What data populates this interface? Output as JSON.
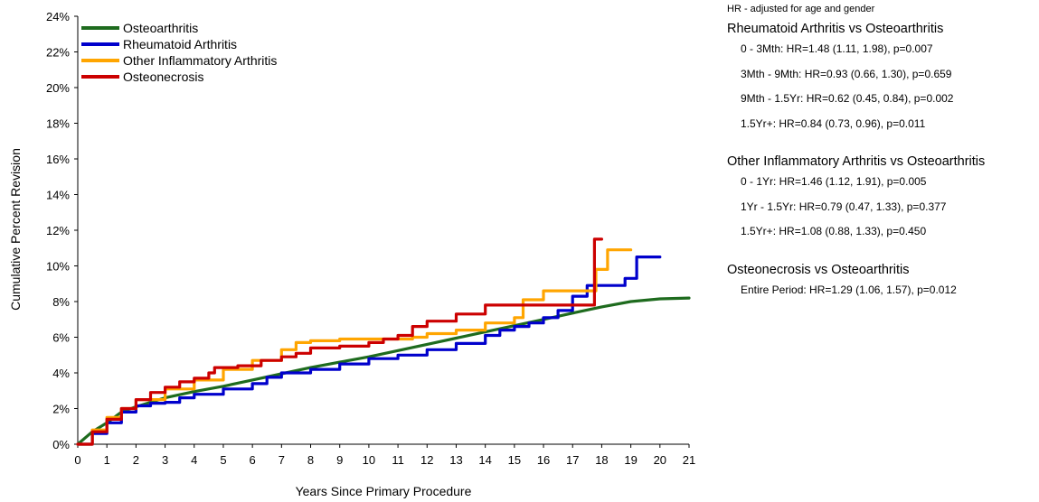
{
  "chart_data": {
    "type": "line",
    "title": "",
    "xlabel": "Years Since Primary Procedure",
    "ylabel": "Cumulative Percent Revision",
    "xlim": [
      0,
      21
    ],
    "ylim": [
      0,
      24
    ],
    "x_ticks": [
      "0",
      "1",
      "2",
      "3",
      "4",
      "5",
      "6",
      "7",
      "8",
      "9",
      "10",
      "11",
      "12",
      "13",
      "14",
      "15",
      "16",
      "17",
      "18",
      "19",
      "20",
      "21"
    ],
    "y_ticks": [
      "0%",
      "2%",
      "4%",
      "6%",
      "8%",
      "10%",
      "12%",
      "14%",
      "16%",
      "18%",
      "20%",
      "22%",
      "24%"
    ],
    "grid": false,
    "legend_position": "top-left",
    "series": [
      {
        "name": "Osteoarthritis",
        "color": "#1E6B1E",
        "step": false,
        "points": [
          [
            0,
            0
          ],
          [
            0.5,
            0.7
          ],
          [
            1,
            1.2
          ],
          [
            1.5,
            1.8
          ],
          [
            2,
            2.1
          ],
          [
            3,
            2.6
          ],
          [
            4,
            2.95
          ],
          [
            5,
            3.25
          ],
          [
            6,
            3.6
          ],
          [
            7,
            3.95
          ],
          [
            8,
            4.3
          ],
          [
            9,
            4.6
          ],
          [
            10,
            4.9
          ],
          [
            11,
            5.25
          ],
          [
            12,
            5.6
          ],
          [
            13,
            5.95
          ],
          [
            14,
            6.3
          ],
          [
            15,
            6.65
          ],
          [
            16,
            7.0
          ],
          [
            17,
            7.35
          ],
          [
            18,
            7.7
          ],
          [
            19,
            8.0
          ],
          [
            20,
            8.15
          ],
          [
            21,
            8.2
          ]
        ]
      },
      {
        "name": "Rheumatoid Arthritis",
        "color": "#0000CC",
        "step": true,
        "points": [
          [
            0,
            0
          ],
          [
            0.5,
            0.6
          ],
          [
            1,
            1.2
          ],
          [
            1.5,
            1.8
          ],
          [
            2,
            2.15
          ],
          [
            2.5,
            2.3
          ],
          [
            3,
            2.35
          ],
          [
            3.5,
            2.6
          ],
          [
            4,
            2.8
          ],
          [
            5,
            3.1
          ],
          [
            6,
            3.4
          ],
          [
            6.5,
            3.75
          ],
          [
            7,
            4.0
          ],
          [
            8,
            4.2
          ],
          [
            9,
            4.5
          ],
          [
            10,
            4.8
          ],
          [
            11,
            5.0
          ],
          [
            12,
            5.3
          ],
          [
            13,
            5.65
          ],
          [
            14,
            6.1
          ],
          [
            14.5,
            6.4
          ],
          [
            15,
            6.6
          ],
          [
            15.5,
            6.8
          ],
          [
            16,
            7.1
          ],
          [
            16.5,
            7.5
          ],
          [
            17,
            8.3
          ],
          [
            17.5,
            8.9
          ],
          [
            18,
            8.9
          ],
          [
            18.8,
            9.3
          ],
          [
            19.2,
            10.5
          ],
          [
            20,
            10.5
          ]
        ]
      },
      {
        "name": "Other Inflammatory Arthritis",
        "color": "#FFA500",
        "step": true,
        "points": [
          [
            0,
            0
          ],
          [
            0.5,
            0.8
          ],
          [
            1,
            1.5
          ],
          [
            1.5,
            2.0
          ],
          [
            2,
            2.5
          ],
          [
            3,
            3.1
          ],
          [
            4,
            3.6
          ],
          [
            5,
            4.2
          ],
          [
            6,
            4.7
          ],
          [
            7,
            5.3
          ],
          [
            7.5,
            5.7
          ],
          [
            8,
            5.8
          ],
          [
            9,
            5.9
          ],
          [
            10,
            5.9
          ],
          [
            11,
            5.9
          ],
          [
            11.5,
            6.0
          ],
          [
            12,
            6.2
          ],
          [
            13,
            6.4
          ],
          [
            14,
            6.8
          ],
          [
            15,
            7.1
          ],
          [
            15.3,
            8.1
          ],
          [
            16,
            8.6
          ],
          [
            17,
            8.6
          ],
          [
            17.5,
            8.6
          ],
          [
            17.8,
            9.8
          ],
          [
            18.2,
            10.9
          ],
          [
            19,
            10.9
          ]
        ]
      },
      {
        "name": "Osteonecrosis",
        "color": "#CC0000",
        "step": true,
        "points": [
          [
            0,
            0
          ],
          [
            0.5,
            0.7
          ],
          [
            1,
            1.4
          ],
          [
            1.5,
            2.0
          ],
          [
            2,
            2.5
          ],
          [
            2.5,
            2.9
          ],
          [
            3,
            3.2
          ],
          [
            3.5,
            3.5
          ],
          [
            4,
            3.7
          ],
          [
            4.5,
            4.0
          ],
          [
            4.7,
            4.3
          ],
          [
            5.5,
            4.4
          ],
          [
            6.3,
            4.7
          ],
          [
            7,
            4.9
          ],
          [
            7.5,
            5.1
          ],
          [
            8,
            5.4
          ],
          [
            9,
            5.5
          ],
          [
            10,
            5.7
          ],
          [
            10.5,
            5.9
          ],
          [
            11,
            6.1
          ],
          [
            11.5,
            6.6
          ],
          [
            12,
            6.9
          ],
          [
            13,
            7.3
          ],
          [
            14,
            7.8
          ],
          [
            15,
            7.8
          ],
          [
            16,
            7.8
          ],
          [
            17,
            7.8
          ],
          [
            17.7,
            7.8
          ],
          [
            17.75,
            11.5
          ],
          [
            18,
            11.5
          ]
        ]
      }
    ]
  },
  "hr_panel": {
    "note": "HR - adjusted for age and gender",
    "groups": [
      {
        "heading": "Rheumatoid Arthritis vs Osteoarthritis",
        "rows": [
          "0 - 3Mth: HR=1.48 (1.11, 1.98), p=0.007",
          "3Mth - 9Mth: HR=0.93 (0.66, 1.30), p=0.659",
          "9Mth - 1.5Yr: HR=0.62 (0.45, 0.84), p=0.002",
          "1.5Yr+: HR=0.84 (0.73, 0.96), p=0.011"
        ]
      },
      {
        "heading": "Other Inflammatory Arthritis vs Osteoarthritis",
        "rows": [
          "0 - 1Yr: HR=1.46 (1.12, 1.91), p=0.005",
          "1Yr - 1.5Yr: HR=0.79 (0.47, 1.33), p=0.377",
          "1.5Yr+: HR=1.08 (0.88, 1.33), p=0.450"
        ]
      },
      {
        "heading": "Osteonecrosis vs Osteoarthritis",
        "rows": [
          "Entire Period: HR=1.29 (1.06, 1.57), p=0.012"
        ]
      }
    ]
  }
}
